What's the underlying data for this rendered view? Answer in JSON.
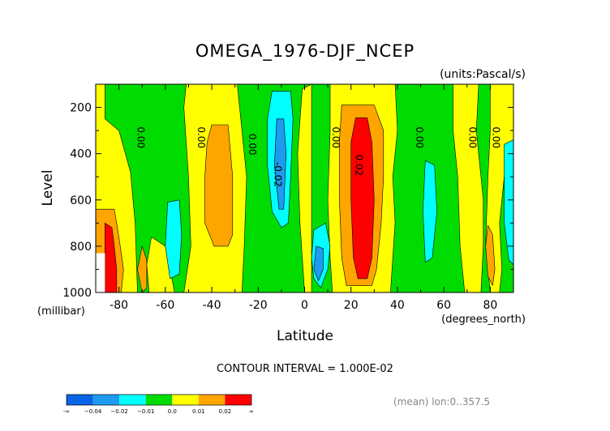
{
  "chart_data": {
    "type": "heatmap",
    "title": "OMEGA_1976-DJF_NCEP",
    "units_label": "(units:Pascal/s)",
    "xlabel": "Latitude",
    "x_units_label": "(degrees_north)",
    "ylabel": "Level",
    "y_units_label": "(millibar)",
    "xlim": [
      -90,
      90
    ],
    "ylim": [
      100,
      1000
    ],
    "y_axis_inverted": true,
    "x_ticks": [
      "-80",
      "-60",
      "-40",
      "-20",
      "0",
      "20",
      "40",
      "60",
      "80"
    ],
    "x_tick_values": [
      -80,
      -60,
      -40,
      -20,
      0,
      20,
      40,
      60,
      80
    ],
    "y_ticks": [
      "200",
      "400",
      "600",
      "800",
      "1000"
    ],
    "y_tick_values": [
      200,
      400,
      600,
      800,
      1000
    ],
    "contour_interval_text": "CONTOUR INTERVAL = 1.000E-02",
    "footer_text": "(mean) lon:0..357.5",
    "color_levels": [
      {
        "label": "-∞",
        "color": "#0a64e6"
      },
      {
        "label": "−0.04",
        "color": "#1e9bf0"
      },
      {
        "label": "−0.02",
        "color": "#00ffff"
      },
      {
        "label": "−0.01",
        "color": "#00dc00"
      },
      {
        "label": "0.0",
        "color": "#ffff00"
      },
      {
        "label": "0.01",
        "color": "#ffa500"
      },
      {
        "label": "0.02",
        "color": "#ff0000"
      },
      {
        "label": "∞",
        "color": ""
      }
    ],
    "contour_labels": [
      {
        "text": "0.00",
        "lat": -72,
        "lev": 330
      },
      {
        "text": "0.00",
        "lat": -46,
        "lev": 330
      },
      {
        "text": "0.00",
        "lat": -24,
        "lev": 360
      },
      {
        "text": "-0.02",
        "lat": -13,
        "lev": 490
      },
      {
        "text": "0.00",
        "lat": 12,
        "lev": 330
      },
      {
        "text": "0.02",
        "lat": 22,
        "lev": 450
      },
      {
        "text": "0.00",
        "lat": 48,
        "lev": 330
      },
      {
        "text": "0.00",
        "lat": 71,
        "lev": 330
      },
      {
        "text": "0.00",
        "lat": 81,
        "lev": 330
      }
    ],
    "regions": [
      {
        "level": "-0.01..0.0",
        "color": "#00dc00",
        "pts": [
          [
            -90,
            100
          ],
          [
            90,
            100
          ],
          [
            90,
            1000
          ],
          [
            -90,
            1000
          ]
        ]
      },
      {
        "level": "0.0..0.01",
        "color": "#ffff00",
        "pts": [
          [
            -90,
            100
          ],
          [
            -86,
            100
          ],
          [
            -86,
            250
          ],
          [
            -80,
            300
          ],
          [
            -75,
            480
          ],
          [
            -73,
            700
          ],
          [
            -72,
            1000
          ],
          [
            -90,
            1000
          ]
        ]
      },
      {
        "level": "0.0..0.01",
        "color": "#ffff00",
        "pts": [
          [
            -66,
            760
          ],
          [
            -68,
            880
          ],
          [
            -67,
            1000
          ],
          [
            -56,
            1000
          ],
          [
            -58,
            900
          ],
          [
            -60,
            800
          ]
        ]
      },
      {
        "level": "0.0..0.01",
        "color": "#ffff00",
        "pts": [
          [
            -51,
            100
          ],
          [
            -29,
            100
          ],
          [
            -28,
            200
          ],
          [
            -25,
            500
          ],
          [
            -26,
            800
          ],
          [
            -27,
            1000
          ],
          [
            -52,
            1000
          ],
          [
            -49,
            800
          ],
          [
            -50,
            500
          ],
          [
            -52,
            200
          ]
        ]
      },
      {
        "level": "0.0..0.01",
        "color": "#ffff00",
        "pts": [
          [
            -1,
            120
          ],
          [
            3,
            100
          ],
          [
            3,
            1000
          ],
          [
            0,
            1000
          ],
          [
            -2,
            700
          ],
          [
            -3,
            400
          ]
        ]
      },
      {
        "level": "0.0..0.01",
        "color": "#ffff00",
        "pts": [
          [
            11,
            100
          ],
          [
            39,
            100
          ],
          [
            40,
            300
          ],
          [
            38,
            500
          ],
          [
            39,
            700
          ],
          [
            38,
            850
          ],
          [
            37,
            1000
          ],
          [
            12,
            1000
          ],
          [
            11,
            850
          ],
          [
            10,
            600
          ],
          [
            11,
            300
          ]
        ]
      },
      {
        "level": "0.0..0.01",
        "color": "#ffff00",
        "pts": [
          [
            64,
            100
          ],
          [
            75,
            100
          ],
          [
            74,
            300
          ],
          [
            77,
            600
          ],
          [
            77,
            800
          ],
          [
            76,
            1000
          ],
          [
            69,
            1000
          ],
          [
            67,
            800
          ],
          [
            66,
            500
          ],
          [
            64,
            300
          ]
        ]
      },
      {
        "level": "0.0..0.01",
        "color": "#ffff00",
        "pts": [
          [
            80,
            100
          ],
          [
            90,
            100
          ],
          [
            90,
            380
          ],
          [
            86,
            500
          ],
          [
            84,
            700
          ],
          [
            85,
            900
          ],
          [
            84,
            1000
          ],
          [
            80,
            1000
          ],
          [
            78,
            800
          ],
          [
            79,
            500
          ],
          [
            80,
            300
          ]
        ]
      },
      {
        "level": "0.01..0.02",
        "color": "#ffa500",
        "pts": [
          [
            -90,
            640
          ],
          [
            -82,
            640
          ],
          [
            -80,
            760
          ],
          [
            -78,
            900
          ],
          [
            -79,
            1000
          ],
          [
            -90,
            1000
          ]
        ]
      },
      {
        "level": "0.01..0.02",
        "color": "#ffa500",
        "pts": [
          [
            -70,
            800
          ],
          [
            -68,
            860
          ],
          [
            -68,
            980
          ],
          [
            -70,
            1000
          ],
          [
            -72,
            900
          ]
        ]
      },
      {
        "level": "0.01..0.02",
        "color": "#ffa500",
        "pts": [
          [
            -40,
            275
          ],
          [
            -33,
            275
          ],
          [
            -31,
            500
          ],
          [
            -31,
            750
          ],
          [
            -33,
            800
          ],
          [
            -39,
            800
          ],
          [
            -43,
            700
          ],
          [
            -43,
            500
          ],
          [
            -42,
            350
          ]
        ]
      },
      {
        "level": "0.01..0.02",
        "color": "#ffa500",
        "pts": [
          [
            16,
            190
          ],
          [
            30,
            190
          ],
          [
            34,
            300
          ],
          [
            34,
            500
          ],
          [
            33,
            700
          ],
          [
            31,
            900
          ],
          [
            29,
            970
          ],
          [
            18,
            970
          ],
          [
            16,
            850
          ],
          [
            15,
            600
          ],
          [
            15,
            350
          ]
        ]
      },
      {
        "level": "0.01..0.02",
        "color": "#ffa500",
        "pts": [
          [
            79,
            710
          ],
          [
            81,
            750
          ],
          [
            82,
            900
          ],
          [
            81,
            970
          ],
          [
            79,
            930
          ],
          [
            78,
            800
          ]
        ]
      },
      {
        "level": "0.02..inf",
        "color": "#ff0000",
        "pts": [
          [
            -86,
            700
          ],
          [
            -83,
            720
          ],
          [
            -82,
            800
          ],
          [
            -81,
            900
          ],
          [
            -81,
            1000
          ],
          [
            -86,
            1000
          ]
        ]
      },
      {
        "level": "0.02..inf",
        "color": "#ff0000",
        "pts": [
          [
            22,
            245
          ],
          [
            27,
            245
          ],
          [
            29,
            350
          ],
          [
            30,
            600
          ],
          [
            29,
            850
          ],
          [
            27,
            940
          ],
          [
            23,
            940
          ],
          [
            21,
            850
          ],
          [
            20,
            600
          ],
          [
            20,
            350
          ]
        ]
      },
      {
        "level": "-0.02..-0.01",
        "color": "#00ffff",
        "pts": [
          [
            -14,
            130
          ],
          [
            -6,
            130
          ],
          [
            -5,
            250
          ],
          [
            -6,
            500
          ],
          [
            -7,
            700
          ],
          [
            -10,
            720
          ],
          [
            -14,
            650
          ],
          [
            -16,
            450
          ],
          [
            -16,
            250
          ]
        ]
      },
      {
        "level": "-0.02..-0.01",
        "color": "#00ffff",
        "pts": [
          [
            4,
            730
          ],
          [
            9,
            700
          ],
          [
            11,
            800
          ],
          [
            10,
            900
          ],
          [
            7,
            980
          ],
          [
            4,
            940
          ],
          [
            3,
            850
          ]
        ]
      },
      {
        "level": "-0.02..-0.01",
        "color": "#00ffff",
        "pts": [
          [
            -59,
            610
          ],
          [
            -54,
            600
          ],
          [
            -53,
            750
          ],
          [
            -54,
            920
          ],
          [
            -58,
            940
          ],
          [
            -60,
            800
          ]
        ]
      },
      {
        "level": "-0.02..-0.01",
        "color": "#00ffff",
        "pts": [
          [
            52,
            430
          ],
          [
            56,
            450
          ],
          [
            57,
            650
          ],
          [
            55,
            850
          ],
          [
            52,
            870
          ],
          [
            51,
            650
          ]
        ]
      },
      {
        "level": "-0.02..-0.01",
        "color": "#00ffff",
        "pts": [
          [
            86,
            360
          ],
          [
            90,
            340
          ],
          [
            90,
            880
          ],
          [
            88,
            860
          ],
          [
            86,
            700
          ],
          [
            86,
            500
          ]
        ]
      },
      {
        "level": "-0.04..-0.02",
        "color": "#1e9bf0",
        "pts": [
          [
            -12,
            250
          ],
          [
            -9,
            250
          ],
          [
            -8,
            400
          ],
          [
            -9,
            640
          ],
          [
            -11,
            640
          ],
          [
            -13,
            450
          ]
        ]
      },
      {
        "level": "-0.04..-0.02",
        "color": "#1e9bf0",
        "pts": [
          [
            5,
            800
          ],
          [
            8,
            810
          ],
          [
            8,
            900
          ],
          [
            6,
            950
          ],
          [
            4,
            900
          ]
        ]
      }
    ],
    "missing_regions": [
      {
        "pts": [
          [
            -90,
            830
          ],
          [
            -86,
            830
          ],
          [
            -86,
            1000
          ],
          [
            -90,
            1000
          ]
        ]
      }
    ]
  }
}
